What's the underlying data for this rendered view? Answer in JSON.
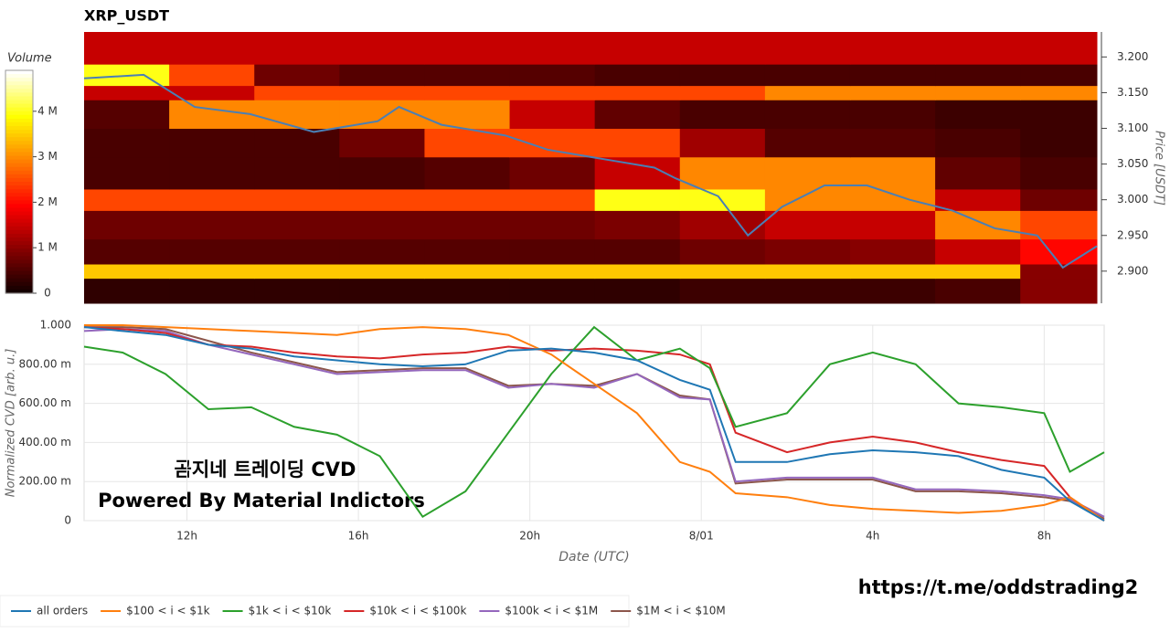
{
  "chart_data": [
    {
      "type": "heatmap",
      "title": "XRP_USDT",
      "ylabel": "Price [USDT]",
      "colorbar_label": "Volume",
      "clim": [
        0,
        4900000
      ],
      "cticks": [
        0,
        {
          "value": 1000000,
          "label": "1 M"
        },
        {
          "value": 2000000,
          "label": "2 M"
        },
        {
          "value": 3000000,
          "label": "3 M"
        },
        {
          "value": 4000000,
          "label": "4 M"
        }
      ],
      "xlim": [
        9.6,
        33.4
      ],
      "ylim": [
        2.855,
        3.235
      ],
      "yticks": [
        {
          "value": 2.9,
          "label": "2.900"
        },
        {
          "value": 2.95,
          "label": "2.950"
        },
        {
          "value": 3.0,
          "label": "3.000"
        },
        {
          "value": 3.05,
          "label": "3.050"
        },
        {
          "value": 3.1,
          "label": "3.100"
        },
        {
          "value": 3.15,
          "label": "3.150"
        },
        {
          "value": 3.2,
          "label": "3.200"
        }
      ],
      "x_bins": [
        9.6,
        11.6,
        13.6,
        15.6,
        17.6,
        19.6,
        21.6,
        23.6,
        25.6,
        27.6,
        29.6,
        31.6,
        33.4
      ],
      "y_bins": [
        2.855,
        2.89,
        2.91,
        2.945,
        2.985,
        3.015,
        3.06,
        3.1,
        3.14,
        3.16,
        3.19,
        3.235
      ],
      "z": [
        [
          300000,
          300000,
          300000,
          300000,
          300000,
          300000,
          300000,
          400000,
          400000,
          400000,
          500000,
          1000000
        ],
        [
          3500000,
          3500000,
          3500000,
          3500000,
          3500000,
          3500000,
          3500000,
          3500000,
          3500000,
          3500000,
          3500000,
          1000000
        ],
        [
          600000,
          600000,
          600000,
          600000,
          600000,
          600000,
          600000,
          800000,
          900000,
          1000000,
          1500000,
          2000000
        ],
        [
          800000,
          800000,
          800000,
          800000,
          800000,
          800000,
          900000,
          1200000,
          1500000,
          1500000,
          3000000,
          2500000
        ],
        [
          2500000,
          2500000,
          2500000,
          2500000,
          2500000,
          2500000,
          4000000,
          4000000,
          3000000,
          3000000,
          1500000,
          800000
        ],
        [
          500000,
          500000,
          500000,
          500000,
          600000,
          800000,
          1500000,
          3000000,
          3000000,
          3000000,
          700000,
          500000
        ],
        [
          500000,
          500000,
          500000,
          800000,
          2500000,
          2500000,
          2500000,
          1200000,
          600000,
          600000,
          500000,
          400000
        ],
        [
          600000,
          3000000,
          3000000,
          3000000,
          3000000,
          1500000,
          700000,
          500000,
          500000,
          500000,
          400000,
          400000
        ],
        [
          1500000,
          1500000,
          2500000,
          2500000,
          2500000,
          2500000,
          2500000,
          2500000,
          3000000,
          3000000,
          3000000,
          3000000
        ],
        [
          4000000,
          2500000,
          800000,
          600000,
          600000,
          600000,
          500000,
          500000,
          500000,
          500000,
          500000,
          500000
        ],
        [
          1500000,
          1500000,
          1500000,
          1500000,
          1500000,
          1500000,
          1500000,
          1500000,
          1500000,
          1500000,
          1500000,
          1500000
        ]
      ],
      "price": {
        "color": "#4a7fb5",
        "x": [
          9.6,
          11,
          12.2,
          13.5,
          15,
          16.5,
          17,
          18,
          19.5,
          20.5,
          22,
          23,
          23.5,
          24.5,
          25.2,
          26,
          27,
          28,
          29,
          30,
          31,
          32,
          32.6,
          33.4
        ],
        "values": [
          3.17,
          3.175,
          3.13,
          3.12,
          3.095,
          3.11,
          3.13,
          3.105,
          3.09,
          3.07,
          3.055,
          3.045,
          3.03,
          3.005,
          2.95,
          2.99,
          3.02,
          3.02,
          3.0,
          2.985,
          2.96,
          2.95,
          2.905,
          2.935
        ]
      }
    },
    {
      "type": "line",
      "ylabel": "Normalized CVD [arb. u.]",
      "xlabel": "Date (UTC)",
      "xlim": [
        9.6,
        33.4
      ],
      "ylim": [
        0,
        1
      ],
      "xticks": [
        {
          "value": 12,
          "label": "12h"
        },
        {
          "value": 16,
          "label": "16h"
        },
        {
          "value": 20,
          "label": "20h"
        },
        {
          "value": 24,
          "label": "8/01"
        },
        {
          "value": 28,
          "label": "4h"
        },
        {
          "value": 32,
          "label": "8h"
        }
      ],
      "yticks": [
        0,
        {
          "value": 0.2,
          "label": "200.00 m"
        },
        {
          "value": 0.4,
          "label": "400.00 m"
        },
        {
          "value": 0.6,
          "label": "600.00 m"
        },
        {
          "value": 0.8,
          "label": "800.00 m"
        },
        {
          "value": 1,
          "label": "1.000"
        }
      ],
      "grid": true,
      "x": [
        9.6,
        10.5,
        11.5,
        12.5,
        13.5,
        14.5,
        15.5,
        16.5,
        17.5,
        18.5,
        19.5,
        20.5,
        21.5,
        22.5,
        23.5,
        24.2,
        24.8,
        26,
        27,
        28,
        29,
        30,
        31,
        32,
        32.6,
        33.4
      ],
      "series": [
        {
          "name": "all orders",
          "color": "#1f77b4",
          "values": [
            0.99,
            0.97,
            0.95,
            0.9,
            0.88,
            0.84,
            0.82,
            0.8,
            0.79,
            0.8,
            0.87,
            0.88,
            0.86,
            0.82,
            0.72,
            0.67,
            0.3,
            0.3,
            0.34,
            0.36,
            0.35,
            0.33,
            0.26,
            0.22,
            0.1,
            0
          ]
        },
        {
          "name": "$100 < i < $1k",
          "color": "#ff7f0e",
          "values": [
            1,
            1,
            0.99,
            0.98,
            0.97,
            0.96,
            0.95,
            0.98,
            0.99,
            0.98,
            0.95,
            0.85,
            0.7,
            0.55,
            0.3,
            0.25,
            0.14,
            0.12,
            0.08,
            0.06,
            0.05,
            0.04,
            0.05,
            0.08,
            0.12,
            0
          ]
        },
        {
          "name": "$1k < i < $10k",
          "color": "#2ca02c",
          "values": [
            0.89,
            0.86,
            0.75,
            0.57,
            0.58,
            0.48,
            0.44,
            0.33,
            0.02,
            0.15,
            0.45,
            0.75,
            0.99,
            0.82,
            0.88,
            0.78,
            0.48,
            0.55,
            0.8,
            0.86,
            0.8,
            0.6,
            0.58,
            0.55,
            0.25,
            0.35
          ]
        },
        {
          "name": "$10k < i < $100k",
          "color": "#d62728",
          "values": [
            0.99,
            0.98,
            0.96,
            0.9,
            0.89,
            0.86,
            0.84,
            0.83,
            0.85,
            0.86,
            0.89,
            0.87,
            0.88,
            0.87,
            0.85,
            0.8,
            0.45,
            0.35,
            0.4,
            0.43,
            0.4,
            0.35,
            0.31,
            0.28,
            0.12,
            0
          ]
        },
        {
          "name": "$100k < i < $1M",
          "color": "#9467bd",
          "values": [
            0.97,
            0.98,
            0.97,
            0.9,
            0.85,
            0.8,
            0.75,
            0.76,
            0.77,
            0.77,
            0.68,
            0.7,
            0.68,
            0.75,
            0.63,
            0.62,
            0.2,
            0.22,
            0.22,
            0.22,
            0.16,
            0.16,
            0.15,
            0.13,
            0.11,
            0.02
          ]
        },
        {
          "name": "$1M < i < $10M",
          "color": "#8c564b",
          "values": [
            0.99,
            0.99,
            0.98,
            0.92,
            0.86,
            0.81,
            0.76,
            0.77,
            0.78,
            0.78,
            0.69,
            0.7,
            0.69,
            0.75,
            0.64,
            0.62,
            0.19,
            0.21,
            0.21,
            0.21,
            0.15,
            0.15,
            0.14,
            0.12,
            0.1,
            0.01
          ]
        }
      ]
    }
  ],
  "watermark": {
    "line1": "곰지네 트레이딩 CVD",
    "line2": "Powered By Material Indictors"
  },
  "footer_link": "https://t.me/oddstrading2"
}
